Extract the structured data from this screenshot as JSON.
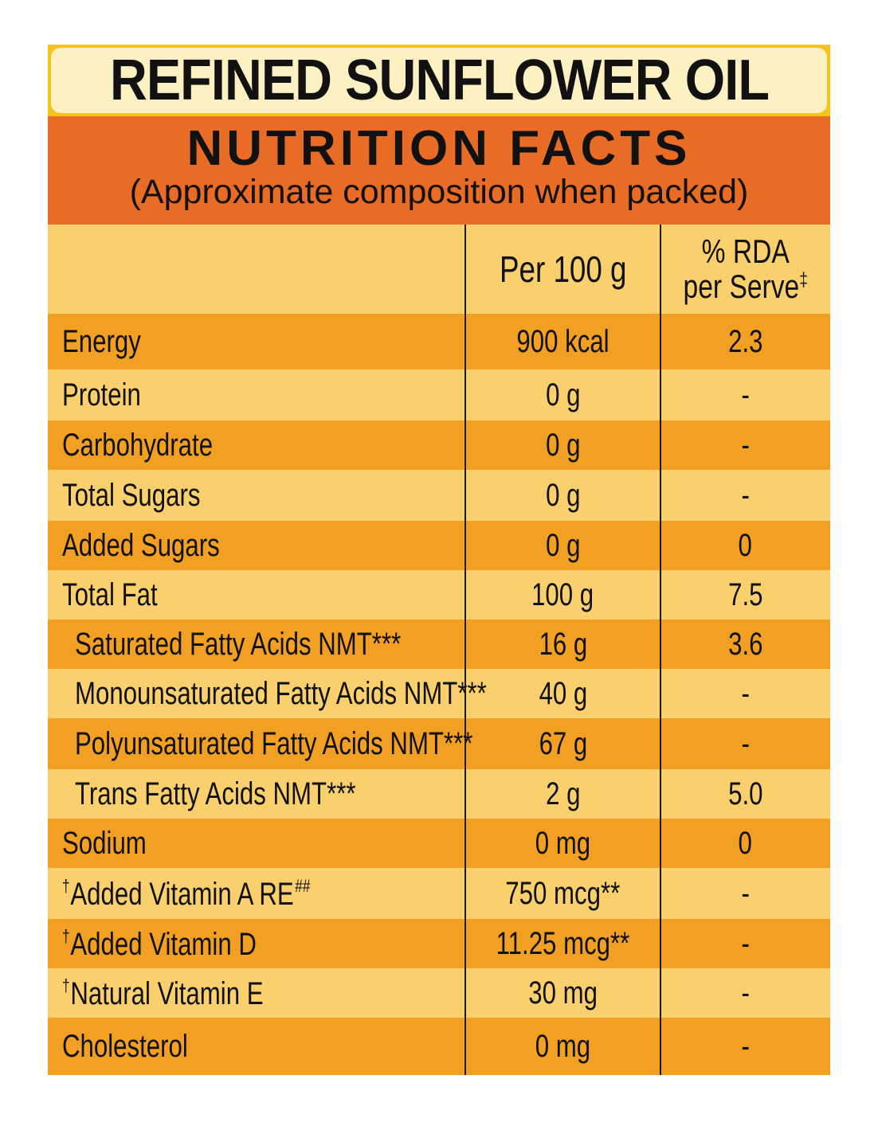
{
  "product_title": "REFINED SUNFLOWER OIL",
  "section_title": "NUTRITION FACTS",
  "section_subtitle": "(Approximate composition when packed)",
  "columns": {
    "per_100g": "Per 100 g",
    "rda_line1": "% RDA",
    "rda_line2": "per Serve",
    "rda_mark": "‡"
  },
  "rows": [
    {
      "name": "Energy",
      "per_100g": "900 kcal",
      "rda": "2.3"
    },
    {
      "name": "Protein",
      "per_100g": "0 g",
      "rda": "-"
    },
    {
      "name": "Carbohydrate",
      "per_100g": "0 g",
      "rda": "-"
    },
    {
      "name": "Total Sugars",
      "per_100g": "0 g",
      "rda": "-"
    },
    {
      "name": "Added Sugars",
      "per_100g": "0 g",
      "rda": "0"
    },
    {
      "name": "Total Fat",
      "per_100g": "100 g",
      "rda": "7.5"
    },
    {
      "name": "Saturated Fatty Acids NMT***",
      "per_100g": "16 g",
      "rda": "3.6"
    },
    {
      "name": "Monounsaturated Fatty Acids NMT***",
      "per_100g": "40 g",
      "rda": "-"
    },
    {
      "name": "Polyunsaturated Fatty Acids NMT***",
      "per_100g": "67 g",
      "rda": "-"
    },
    {
      "name": "Trans Fatty Acids NMT***",
      "per_100g": "2 g",
      "rda": "5.0"
    },
    {
      "name": "Sodium",
      "per_100g": "0 mg",
      "rda": "0"
    },
    {
      "name": "Added Vitamin A RE",
      "dagger": "†",
      "suffix": "##",
      "per_100g": "750 mcg**",
      "rda": "-"
    },
    {
      "name": "Added Vitamin D",
      "dagger": "†",
      "per_100g": "11.25 mcg**",
      "rda": "-"
    },
    {
      "name": "Natural Vitamin E",
      "dagger": "†",
      "per_100g": "30 mg",
      "rda": "-"
    },
    {
      "name": "Cholesterol",
      "per_100g": "0 mg",
      "rda": "-"
    }
  ]
}
